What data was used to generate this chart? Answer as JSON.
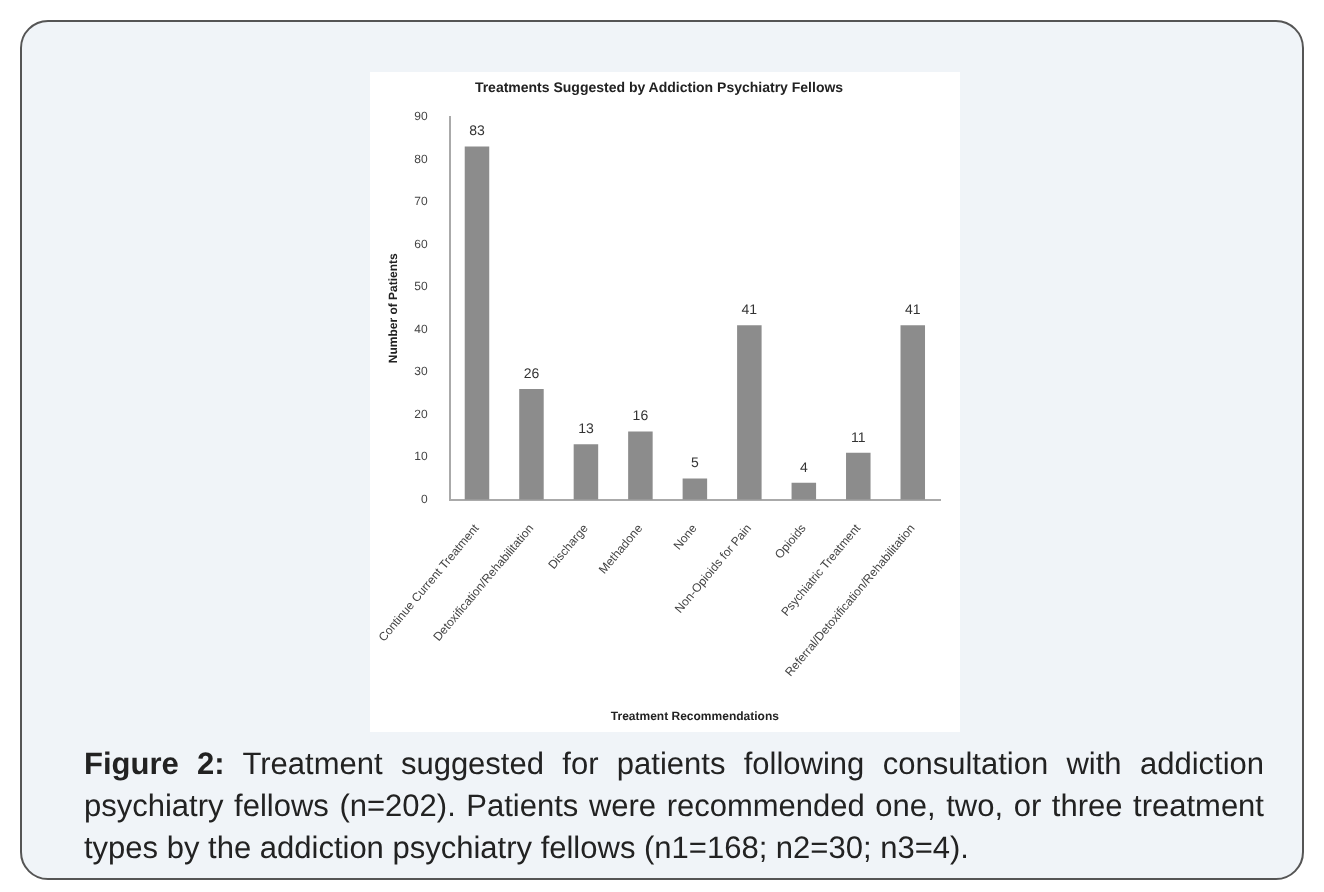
{
  "chart_data": {
    "type": "bar",
    "title": "Treatments Suggested by Addiction Psychiatry Fellows",
    "xlabel": "Treatment Recommendations",
    "ylabel": "Number of Patients",
    "categories": [
      "Continue Current Treatment",
      "Detoxification/Rehabilitation",
      "Discharge",
      "Methadone",
      "None",
      "Non-Opioids for Pain",
      "Opioids",
      "Psychiatric Treatment",
      "Referral/Detoxification/Rehabilitation"
    ],
    "values": [
      83,
      26,
      13,
      16,
      5,
      41,
      4,
      11,
      41
    ],
    "color": "#8c8c8c",
    "ylim": [
      0,
      90
    ],
    "yticks": [
      0,
      10,
      20,
      30,
      40,
      50,
      60,
      70,
      80,
      90
    ],
    "grid": false,
    "data_labels": true,
    "legend": false,
    "annotations": [
      "Figure 2: Treatment suggested for patients following consultation with addiction psychiatry fellows (n=202). Patients were recommended one, two, or three treatment types by the addiction psychiatry fellows (n1=168; n2=30; n3=4)."
    ]
  }
}
